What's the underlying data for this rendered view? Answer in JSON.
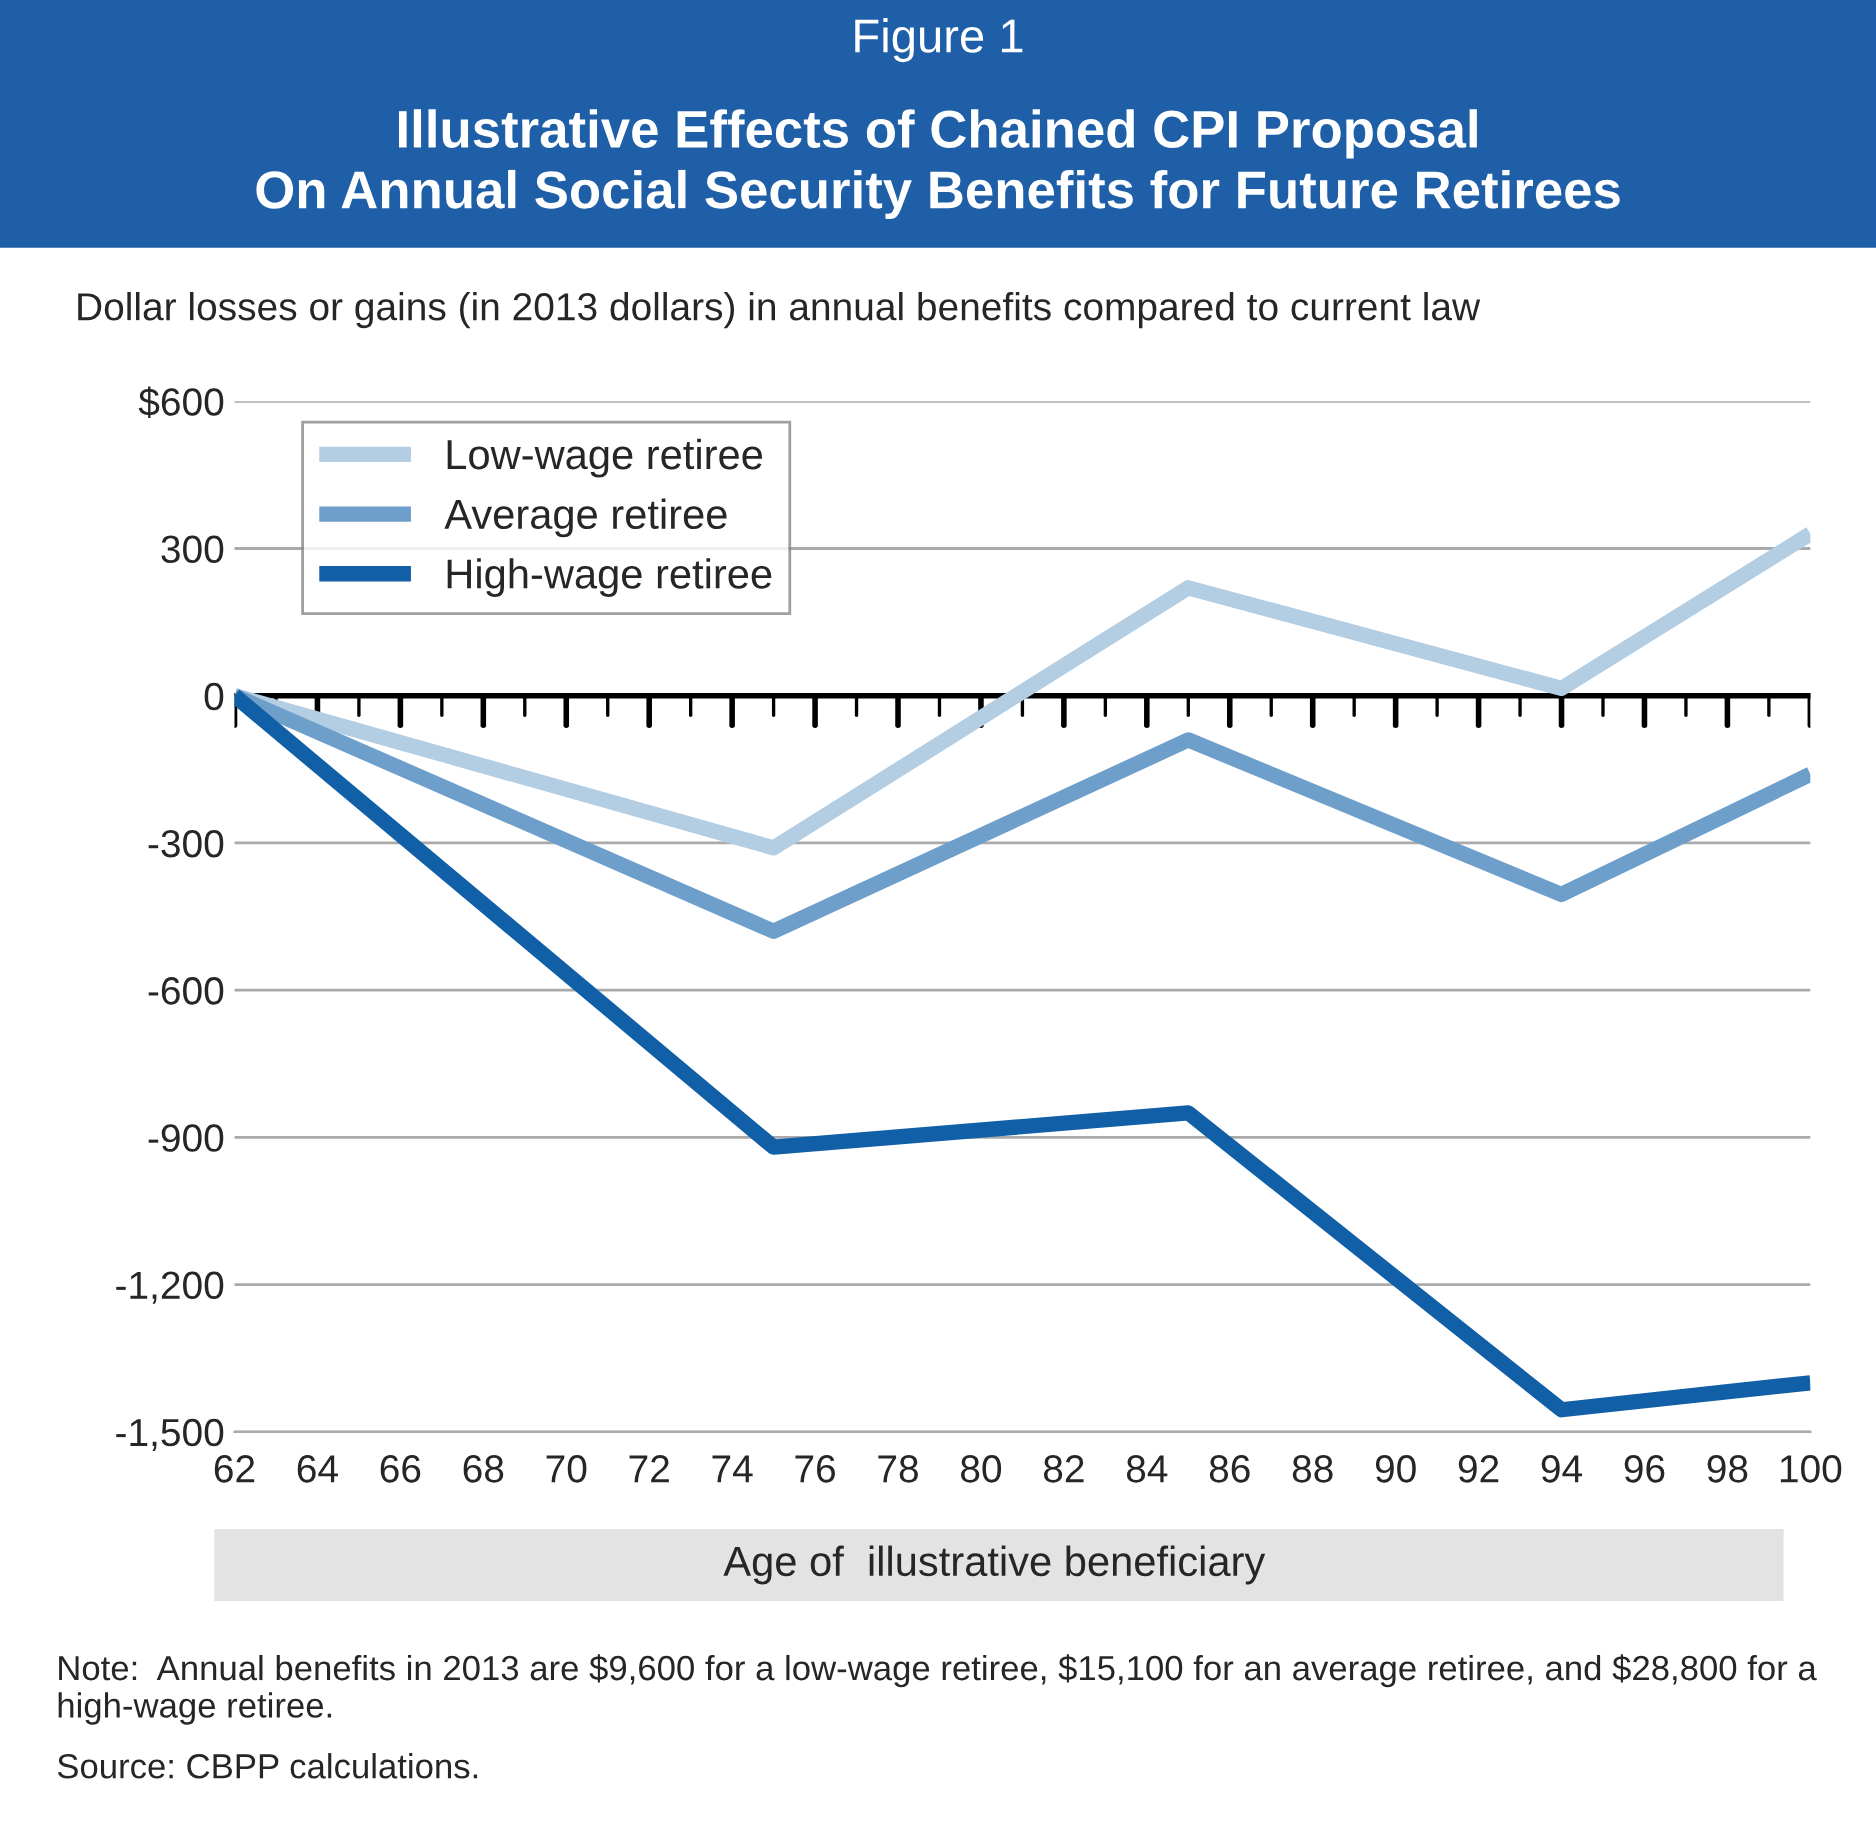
{
  "chart_data": {
    "type": "line",
    "title": "Illustrative Effects of Chained CPI Proposal\nOn Annual Social Security Benefits for Future Retirees",
    "subtitle": "Dollar losses or gains (in 2013 dollars) in annual benefits compared to current law",
    "xlabel": "Age of  illustrative beneficiary",
    "annotations": [
      "Figure 1",
      "Note:  Annual benefits in 2013 are $9,600 for a low-wage retiree, $15,100 for an average retiree, and $28,800 for a high-wage retiree.",
      "Source: CBPP calculations."
    ],
    "x": [
      62,
      75,
      85,
      94,
      100
    ],
    "series": [
      {
        "name": "Low-wage retiree",
        "color": "#b3cde3",
        "values": [
          0,
          -310,
          220,
          15,
          330
        ]
      },
      {
        "name": "Average retiree",
        "color": "#6e9fcb",
        "values": [
          0,
          -480,
          -90,
          -405,
          -160
        ]
      },
      {
        "name": "High-wage retiree",
        "color": "#115fa6",
        "values": [
          0,
          -920,
          -850,
          -1455,
          -1400
        ]
      }
    ],
    "xlim": [
      62,
      100
    ],
    "xticks": [
      62,
      64,
      66,
      68,
      70,
      72,
      74,
      76,
      78,
      80,
      82,
      84,
      86,
      88,
      90,
      92,
      94,
      96,
      98,
      100
    ],
    "ylim": [
      -1500,
      600
    ],
    "yticks": [
      {
        "value": 600,
        "label": "$600"
      },
      300,
      0,
      -300,
      -600,
      -900,
      {
        "value": -1200,
        "label": "-1,200"
      },
      {
        "value": -1500,
        "label": "-1,500"
      }
    ],
    "grid": "y",
    "legend": "top left",
    "line_style": "solid",
    "marker": "none"
  }
}
